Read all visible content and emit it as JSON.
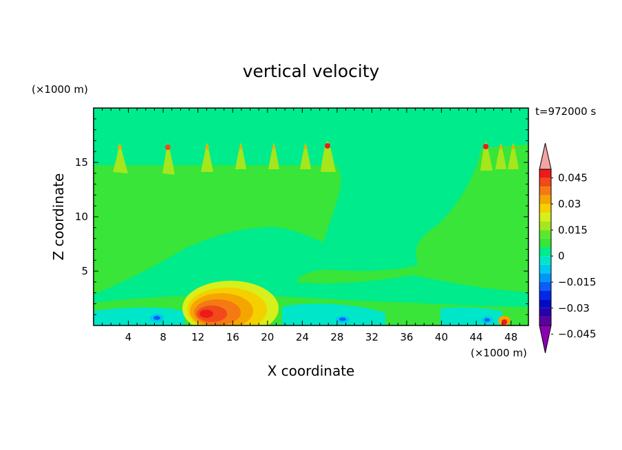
{
  "chart_data": {
    "type": "heatmap",
    "title": "vertical velocity",
    "xlabel": "X coordinate",
    "ylabel": "Z coordinate",
    "x_unit": "(×1000 m)",
    "y_unit": "(×1000 m)",
    "time_label": "t=972000 s",
    "xlim": [
      0,
      50
    ],
    "ylim": [
      0,
      20
    ],
    "x_ticks": [
      "4",
      "8",
      "12",
      "16",
      "20",
      "24",
      "28",
      "32",
      "36",
      "40",
      "44",
      "48"
    ],
    "y_ticks": [
      "5",
      "10",
      "15"
    ],
    "colorbar": {
      "labels": [
        "0.045",
        "0.03",
        "0.015",
        "0",
        "−0.015",
        "−0.03",
        "−0.045"
      ],
      "level_values": [
        0.045,
        0.03,
        0.015,
        0,
        -0.015,
        -0.03,
        -0.045
      ],
      "colors": [
        "#f5a3a3",
        "#ee1a1a",
        "#f04a1a",
        "#f47a14",
        "#f5a500",
        "#f5d000",
        "#d7ef1a",
        "#a6e61c",
        "#5ee62a",
        "#38e538",
        "#00eb8c",
        "#00e6c8",
        "#00c8f0",
        "#0096f5",
        "#0a5ef5",
        "#0028e6",
        "#000ac8",
        "#2a00a8",
        "#5a00a0",
        "#8c00b4"
      ]
    },
    "background_level": "#00eb8c",
    "features": [
      {
        "name": "positive updraft core",
        "x_km": 13.5,
        "z_km": 1.2,
        "value": 0.04
      },
      {
        "name": "upper plumes",
        "x_km": [
          3.3,
          8.7,
          13.2,
          17.6,
          21.6,
          25.6,
          27.8,
          44.5,
          46.5,
          48.2
        ],
        "z_km": 16.5,
        "value": 0.03
      },
      {
        "name": "negative downdrafts",
        "x_km": [
          7.5,
          29.5,
          45.5
        ],
        "z_km": 0.8,
        "value": -0.03
      }
    ]
  }
}
